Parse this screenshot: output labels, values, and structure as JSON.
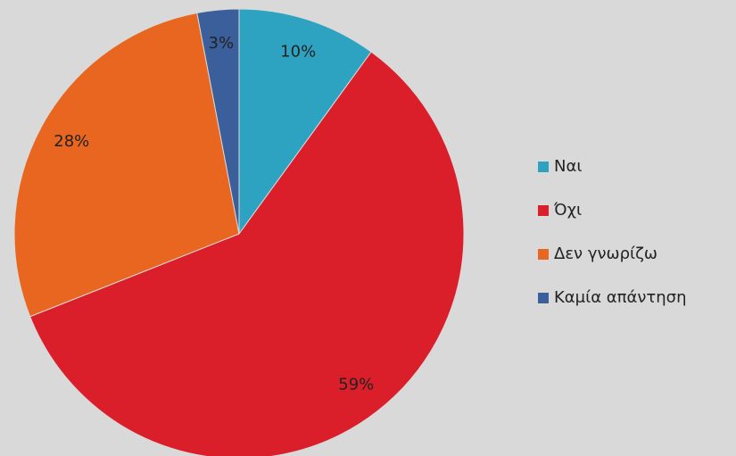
{
  "chart_data": {
    "type": "pie",
    "categories": [
      "Ναι",
      "Όχι",
      "Δεν γνωρίζω",
      "Καμία απάντηση"
    ],
    "values": [
      10,
      59,
      28,
      3
    ],
    "value_labels": [
      "10%",
      "59%",
      "28%",
      "3%"
    ],
    "colors": [
      "#2ea3c1",
      "#da1f2b",
      "#e8661f",
      "#3a5f9b"
    ],
    "legend": "right"
  }
}
